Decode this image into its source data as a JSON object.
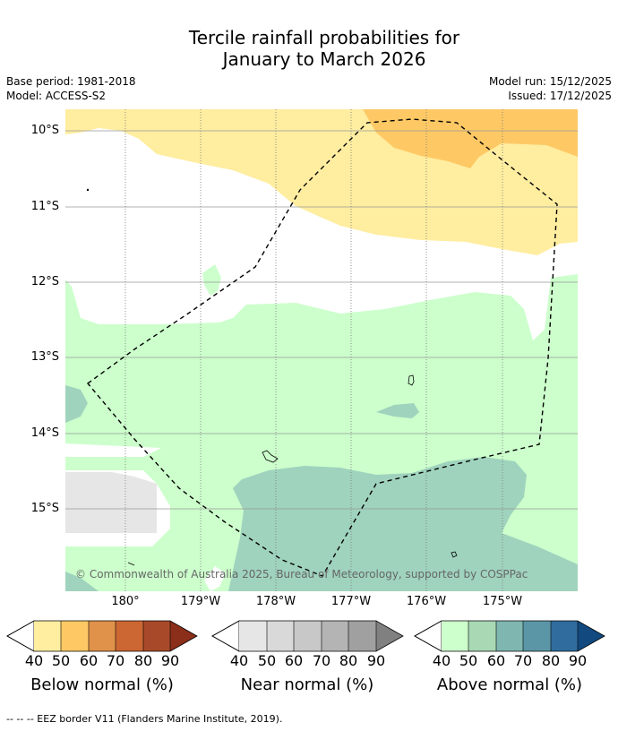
{
  "title": {
    "line1": "Tercile rainfall probabilities for",
    "line2": "January to March 2026"
  },
  "meta": {
    "base_period": "Base period: 1981-2018",
    "model": "Model: ACCESS-S2",
    "model_run": "Model run: 15/12/2025",
    "issued": "Issued: 17/12/2025"
  },
  "map": {
    "lat_labels": [
      "10°S",
      "11°S",
      "12°S",
      "13°S",
      "14°S",
      "15°S"
    ],
    "lon_labels": [
      "180°",
      "179°W",
      "178°W",
      "177°W",
      "176°W",
      "175°W"
    ],
    "copyright": "© Commonwealth of Australia 2025, Bureau of Meteorology, supported by COSPPac",
    "regions": [
      {
        "name": "below-normal-40-50",
        "category": "Below normal",
        "probability_range": "40-50"
      },
      {
        "name": "below-normal-50-60",
        "category": "Below normal",
        "probability_range": "50-60"
      },
      {
        "name": "above-normal-40-50",
        "category": "Above normal",
        "probability_range": "40-50"
      },
      {
        "name": "above-normal-50-60",
        "category": "Above normal",
        "probability_range": "50-60"
      },
      {
        "name": "near-normal-40-50",
        "category": "Near normal",
        "probability_range": "40-50"
      }
    ]
  },
  "colorbars": [
    {
      "title": "Below normal (%)",
      "ticks": [
        "40",
        "50",
        "60",
        "70",
        "80",
        "90"
      ],
      "colors": [
        "#ffeda0",
        "#fec965",
        "#e0924a",
        "#cc6633",
        "#a84a2a",
        "#8b2e1a"
      ]
    },
    {
      "title": "Near normal (%)",
      "ticks": [
        "40",
        "50",
        "60",
        "70",
        "80",
        "90"
      ],
      "colors": [
        "#e6e6e6",
        "#d9d9d9",
        "#c8c8c8",
        "#b4b4b4",
        "#a0a0a0",
        "#808080"
      ]
    },
    {
      "title": "Above normal (%)",
      "ticks": [
        "40",
        "50",
        "60",
        "70",
        "80",
        "90"
      ],
      "colors": [
        "#ccffcc",
        "#a8d8b4",
        "#7fb7b0",
        "#5b96a6",
        "#306c9e",
        "#124a80"
      ]
    }
  ],
  "footer": {
    "legend_text": "--  --  -- EEZ border V11 (Flanders Marine Institute, 2019)."
  }
}
